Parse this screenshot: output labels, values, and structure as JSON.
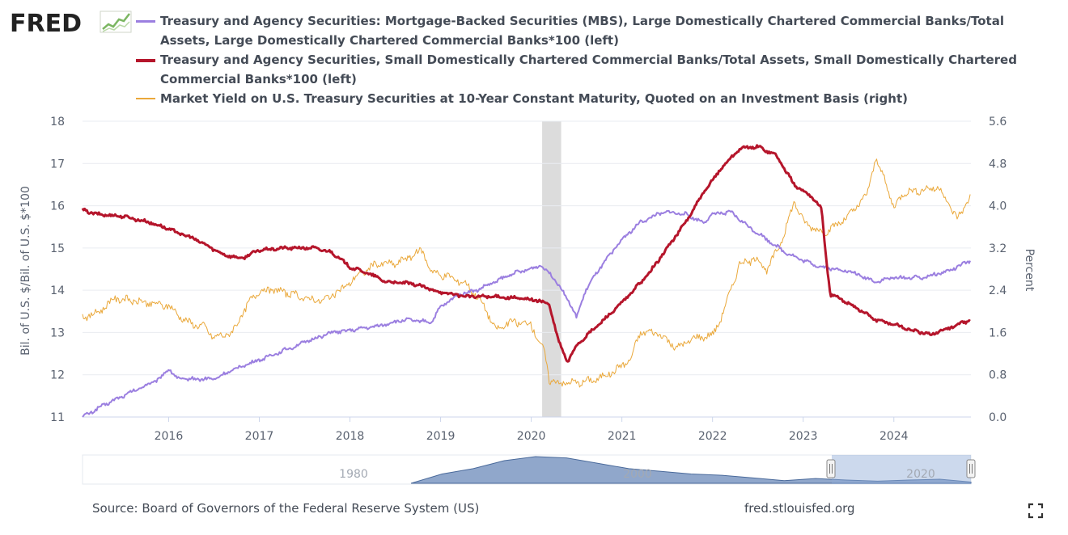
{
  "logo": {
    "text": "FRED"
  },
  "legend": [
    {
      "label": "Treasury and Agency Securities: Mortgage-Backed Securities (MBS), Large Domestically Chartered Commercial Banks/Total Assets, Large Domestically Chartered Commercial Banks*100 (left)",
      "color": "#9b7fe0",
      "width": 2
    },
    {
      "label": "Treasury and Agency Securities, Small Domestically Chartered Commercial Banks/Total Assets, Small Domestically Chartered Commercial Banks*100 (left)",
      "color": "#b5152b",
      "width": 3
    },
    {
      "label": "Market Yield on U.S. Treasury Securities at 10-Year Constant Maturity, Quoted on an Investment Basis (right)",
      "color": "#eaa83a",
      "width": 1
    }
  ],
  "chart_data": {
    "type": "line",
    "title": "",
    "xlabel": "",
    "ylabel_left": "Bil. of U.S. $/Bil. of U.S. $*100",
    "ylabel_right": "Percent",
    "xlim": [
      2015.05,
      2024.85
    ],
    "ylim_left": [
      11,
      18
    ],
    "ylim_right": [
      0.0,
      5.6
    ],
    "left_ticks": [
      "11",
      "12",
      "13",
      "14",
      "15",
      "16",
      "17",
      "18"
    ],
    "right_ticks": [
      "0.0",
      "0.8",
      "1.6",
      "2.4",
      "3.2",
      "4.0",
      "4.8",
      "5.6"
    ],
    "x_ticks": [
      {
        "year": 2016,
        "label": "2016"
      },
      {
        "year": 2017,
        "label": "2017"
      },
      {
        "year": 2018,
        "label": "2018"
      },
      {
        "year": 2019,
        "label": "2019"
      },
      {
        "year": 2020,
        "label": "2020"
      },
      {
        "year": 2021,
        "label": "2021"
      },
      {
        "year": 2022,
        "label": "2022"
      },
      {
        "year": 2023,
        "label": "2023"
      },
      {
        "year": 2024,
        "label": "2024"
      }
    ],
    "grid": true,
    "recession": [
      2020.12,
      2020.33
    ],
    "series": [
      {
        "name": "Treasury and Agency Securities: MBS, Large Domestically Chartered Commercial Banks/Total Assets*100",
        "axis": "left",
        "color": "#9b7fe0",
        "width": 2,
        "noise": 0.035,
        "x": [
          2015.05,
          2015.3,
          2015.6,
          2015.9,
          2016.0,
          2016.1,
          2016.5,
          2016.8,
          2017.0,
          2017.3,
          2017.6,
          2017.8,
          2018.0,
          2018.3,
          2018.6,
          2018.9,
          2019.0,
          2019.2,
          2019.4,
          2019.6,
          2019.8,
          2020.0,
          2020.1,
          2020.25,
          2020.4,
          2020.5,
          2020.6,
          2020.75,
          2021.0,
          2021.2,
          2021.4,
          2021.5,
          2021.7,
          2021.9,
          2022.0,
          2022.2,
          2022.4,
          2022.6,
          2022.8,
          2023.0,
          2023.2,
          2023.5,
          2023.8,
          2024.0,
          2024.3,
          2024.6,
          2024.85
        ],
        "y": [
          11.0,
          11.3,
          11.6,
          11.9,
          12.15,
          11.9,
          11.9,
          12.2,
          12.35,
          12.6,
          12.85,
          13.0,
          13.05,
          13.15,
          13.3,
          13.25,
          13.6,
          13.9,
          14.0,
          14.2,
          14.4,
          14.5,
          14.6,
          14.3,
          13.8,
          13.35,
          14.0,
          14.5,
          15.2,
          15.6,
          15.8,
          15.85,
          15.8,
          15.6,
          15.8,
          15.85,
          15.5,
          15.2,
          14.9,
          14.7,
          14.55,
          14.45,
          14.2,
          14.3,
          14.3,
          14.45,
          14.7
        ]
      },
      {
        "name": "Treasury and Agency Securities, Small Domestically Chartered Commercial Banks/Total Assets*100",
        "axis": "left",
        "color": "#b5152b",
        "width": 3,
        "noise": 0.03,
        "x": [
          2015.05,
          2015.2,
          2015.5,
          2015.8,
          2016.0,
          2016.3,
          2016.6,
          2016.8,
          2017.0,
          2017.3,
          2017.6,
          2017.8,
          2018.0,
          2018.2,
          2018.4,
          2018.7,
          2019.0,
          2019.3,
          2019.6,
          2019.9,
          2020.1,
          2020.2,
          2020.3,
          2020.4,
          2020.5,
          2020.7,
          2021.0,
          2021.3,
          2021.5,
          2021.7,
          2021.9,
          2022.1,
          2022.3,
          2022.5,
          2022.7,
          2022.9,
          2023.1,
          2023.2,
          2023.25,
          2023.3,
          2023.5,
          2023.8,
          2024.0,
          2024.2,
          2024.4,
          2024.6,
          2024.85
        ],
        "y": [
          15.9,
          15.8,
          15.75,
          15.6,
          15.45,
          15.2,
          14.85,
          14.75,
          14.95,
          15.0,
          15.0,
          14.9,
          14.55,
          14.4,
          14.2,
          14.15,
          13.95,
          13.85,
          13.85,
          13.8,
          13.75,
          13.65,
          12.8,
          12.3,
          12.7,
          13.1,
          13.7,
          14.4,
          15.0,
          15.6,
          16.3,
          16.9,
          17.35,
          17.4,
          17.2,
          16.5,
          16.2,
          15.95,
          14.8,
          13.9,
          13.7,
          13.3,
          13.2,
          13.05,
          12.95,
          13.1,
          13.3
        ]
      },
      {
        "name": "Market Yield on U.S. Treasury Securities at 10-Year Constant Maturity",
        "axis": "right",
        "color": "#eaa83a",
        "width": 1,
        "noise": 0.06,
        "x": [
          2015.05,
          2015.2,
          2015.4,
          2015.6,
          2015.8,
          2016.0,
          2016.2,
          2016.4,
          2016.5,
          2016.7,
          2016.9,
          2017.0,
          2017.2,
          2017.5,
          2017.7,
          2017.9,
          2018.1,
          2018.3,
          2018.5,
          2018.8,
          2018.9,
          2019.1,
          2019.3,
          2019.5,
          2019.6,
          2019.8,
          2020.0,
          2020.15,
          2020.2,
          2020.3,
          2020.5,
          2020.7,
          2020.9,
          2021.1,
          2021.2,
          2021.4,
          2021.6,
          2021.8,
          2022.0,
          2022.1,
          2022.3,
          2022.5,
          2022.6,
          2022.8,
          2022.9,
          2023.0,
          2023.2,
          2023.3,
          2023.5,
          2023.7,
          2023.8,
          2023.9,
          2024.0,
          2024.1,
          2024.3,
          2024.5,
          2024.7,
          2024.85
        ],
        "y": [
          1.9,
          1.95,
          2.25,
          2.2,
          2.15,
          2.1,
          1.8,
          1.7,
          1.5,
          1.6,
          2.2,
          2.4,
          2.4,
          2.25,
          2.2,
          2.4,
          2.7,
          2.9,
          2.9,
          3.15,
          2.75,
          2.65,
          2.5,
          2.05,
          1.65,
          1.8,
          1.75,
          1.2,
          0.7,
          0.65,
          0.65,
          0.7,
          0.85,
          1.1,
          1.6,
          1.6,
          1.3,
          1.5,
          1.55,
          1.9,
          2.9,
          3.0,
          2.75,
          3.5,
          4.1,
          3.7,
          3.5,
          3.55,
          3.8,
          4.2,
          4.9,
          4.5,
          3.95,
          4.25,
          4.3,
          4.35,
          3.75,
          4.2
        ]
      }
    ]
  },
  "navigator": {
    "labels": [
      "1980",
      "2000",
      "2020"
    ],
    "area_y": [
      0.0,
      0.35,
      0.55,
      0.85,
      1.0,
      0.95,
      0.75,
      0.55,
      0.45,
      0.35,
      0.3,
      0.2,
      0.1,
      0.18,
      0.12,
      0.08,
      0.12,
      0.15,
      0.05
    ]
  },
  "footer": {
    "source": "Source: Board of Governors of the Federal Reserve System (US)",
    "site": "fred.stlouisfed.org"
  },
  "icons": {
    "fullscreen": "fullscreen-icon"
  }
}
